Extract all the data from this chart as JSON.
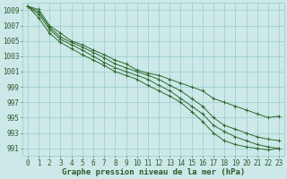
{
  "title": "Graphe pression niveau de la mer (hPa)",
  "x_values": [
    0,
    1,
    2,
    3,
    4,
    5,
    6,
    7,
    8,
    9,
    10,
    11,
    12,
    13,
    14,
    15,
    16,
    17,
    18,
    19,
    20,
    21,
    22,
    23
  ],
  "series": [
    [
      1009.5,
      1009.1,
      1007.0,
      1006.0,
      1005.0,
      1004.5,
      1003.8,
      1003.2,
      1002.5,
      1002.0,
      1001.2,
      1000.8,
      1000.5,
      1000.0,
      999.5,
      999.0,
      998.5,
      997.5,
      997.0,
      996.5,
      996.0,
      995.5,
      995.0,
      995.2
    ],
    [
      1009.5,
      1008.8,
      1006.8,
      1005.5,
      1004.8,
      1004.2,
      1003.5,
      1002.8,
      1002.0,
      1001.5,
      1001.0,
      1000.5,
      1000.0,
      999.2,
      998.5,
      997.5,
      996.5,
      995.0,
      994.0,
      993.5,
      993.0,
      992.5,
      992.2,
      992.0
    ],
    [
      1009.5,
      1008.5,
      1006.5,
      1005.2,
      1004.5,
      1003.8,
      1003.0,
      1002.2,
      1001.5,
      1001.0,
      1000.5,
      1000.0,
      999.2,
      998.5,
      997.5,
      996.5,
      995.5,
      994.0,
      993.2,
      992.5,
      992.0,
      991.5,
      991.2,
      991.0
    ],
    [
      1009.5,
      1008.0,
      1006.0,
      1004.8,
      1004.0,
      1003.2,
      1002.5,
      1001.8,
      1001.0,
      1000.5,
      1000.0,
      999.2,
      998.5,
      997.8,
      997.0,
      995.8,
      994.5,
      993.0,
      992.0,
      991.5,
      991.2,
      991.0,
      990.8,
      991.0
    ]
  ],
  "line_color": "#2d6a2d",
  "marker": "+",
  "bg_color": "#cce8e8",
  "grid_color": "#99cccc",
  "text_color": "#2d5a2d",
  "ylim": [
    990,
    1010
  ],
  "ytick_min": 991,
  "ytick_max": 1009,
  "ytick_step": 2,
  "xlim": [
    -0.5,
    23.5
  ],
  "xticks": [
    0,
    1,
    2,
    3,
    4,
    5,
    6,
    7,
    8,
    9,
    10,
    11,
    12,
    13,
    14,
    15,
    16,
    17,
    18,
    19,
    20,
    21,
    22,
    23
  ],
  "tick_fontsize": 5.5,
  "title_fontsize": 6.5,
  "lw": 0.7,
  "markersize": 2.5,
  "markeredgewidth": 0.7
}
